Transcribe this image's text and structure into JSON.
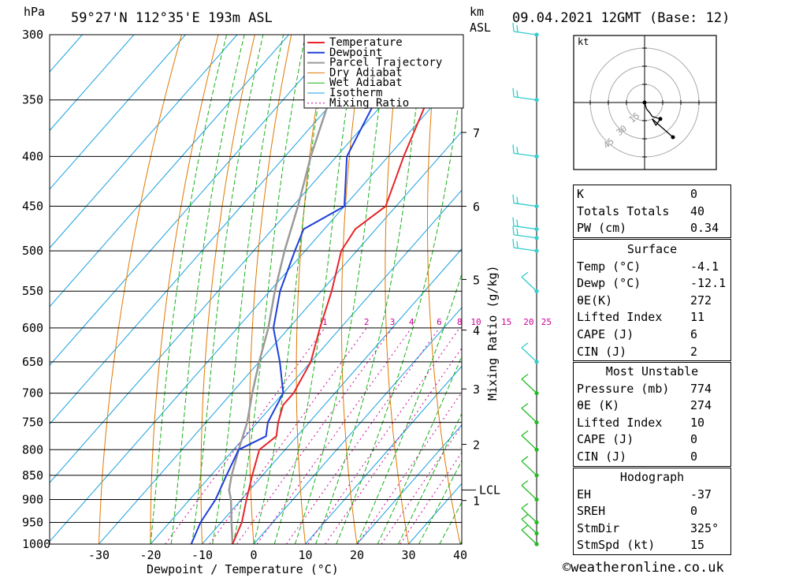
{
  "header": {
    "location": "59°27'N  112°35'E  193m  ASL",
    "datetime": "09.04.2021  12GMT  (Base: 12)",
    "hpa_label": "hPa",
    "km_label": "km",
    "asl_label": "ASL",
    "mixing_ratio_axis": "Mixing Ratio (g/kg)",
    "lcl_label": "LCL"
  },
  "legend": [
    "Temperature",
    "Dewpoint",
    "Parcel Trajectory",
    "Dry Adiabat",
    "Wet Adiabat",
    "Isotherm",
    "Mixing Ratio"
  ],
  "colors": {
    "temperature": "#e8242a",
    "dewpoint": "#1f3fd8",
    "parcel": "#9a9a9a",
    "dry_adiabat": "#e07800",
    "wet_adiabat": "#18b018",
    "isotherm": "#19a0e0",
    "mixing_ratio": "#cc0099",
    "wind": "#33cccc",
    "wind_low": "#22bb22"
  },
  "chart_data": {
    "type": "skew-t",
    "xlabel": "Dewpoint / Temperature (°C)",
    "ylabel": "hPa",
    "xlim": [
      -40,
      40
    ],
    "ylim": [
      1000,
      300
    ],
    "x_ticks": [
      "-30",
      "-20",
      "-10",
      "0",
      "10",
      "20",
      "30",
      "40"
    ],
    "pressure_levels": [
      300,
      350,
      400,
      450,
      500,
      550,
      600,
      650,
      700,
      750,
      800,
      850,
      900,
      950,
      1000
    ],
    "height_km_ticks": [
      {
        "label": "7",
        "p": 378
      },
      {
        "label": "6",
        "p": 450
      },
      {
        "label": "5",
        "p": 535
      },
      {
        "label": "4",
        "p": 603
      },
      {
        "label": "3",
        "p": 693
      },
      {
        "label": "2",
        "p": 790
      },
      {
        "label": "1",
        "p": 902
      }
    ],
    "mixing_ratio_labels": [
      "1",
      "2",
      "3",
      "4",
      "6",
      "8",
      "10",
      "15",
      "20",
      "25"
    ],
    "temperature": [
      {
        "p": 1000,
        "t": -4.1
      },
      {
        "p": 950,
        "t": -6
      },
      {
        "p": 900,
        "t": -9
      },
      {
        "p": 850,
        "t": -12
      },
      {
        "p": 800,
        "t": -15
      },
      {
        "p": 775,
        "t": -14
      },
      {
        "p": 750,
        "t": -16
      },
      {
        "p": 720,
        "t": -18
      },
      {
        "p": 700,
        "t": -18
      },
      {
        "p": 650,
        "t": -20
      },
      {
        "p": 600,
        "t": -24
      },
      {
        "p": 550,
        "t": -28
      },
      {
        "p": 500,
        "t": -33
      },
      {
        "p": 475,
        "t": -34
      },
      {
        "p": 450,
        "t": -32
      },
      {
        "p": 400,
        "t": -37
      },
      {
        "p": 350,
        "t": -42
      },
      {
        "p": 300,
        "t": -47
      }
    ],
    "dewpoint": [
      {
        "p": 1000,
        "t": -12.1
      },
      {
        "p": 950,
        "t": -14
      },
      {
        "p": 900,
        "t": -15
      },
      {
        "p": 850,
        "t": -17
      },
      {
        "p": 800,
        "t": -19
      },
      {
        "p": 775,
        "t": -16
      },
      {
        "p": 750,
        "t": -18
      },
      {
        "p": 700,
        "t": -20
      },
      {
        "p": 650,
        "t": -26
      },
      {
        "p": 600,
        "t": -33
      },
      {
        "p": 550,
        "t": -38
      },
      {
        "p": 500,
        "t": -42
      },
      {
        "p": 475,
        "t": -44
      },
      {
        "p": 450,
        "t": -40
      },
      {
        "p": 400,
        "t": -48
      },
      {
        "p": 350,
        "t": -52
      },
      {
        "p": 300,
        "t": -56
      }
    ],
    "parcel": [
      {
        "p": 1000,
        "t": -4.1
      },
      {
        "p": 950,
        "t": -8
      },
      {
        "p": 900,
        "t": -12
      },
      {
        "p": 880,
        "t": -14
      },
      {
        "p": 850,
        "t": -16
      },
      {
        "p": 800,
        "t": -19
      },
      {
        "p": 750,
        "t": -22
      },
      {
        "p": 700,
        "t": -26
      },
      {
        "p": 650,
        "t": -30
      },
      {
        "p": 600,
        "t": -34
      },
      {
        "p": 550,
        "t": -39
      },
      {
        "p": 500,
        "t": -44
      },
      {
        "p": 450,
        "t": -49
      },
      {
        "p": 400,
        "t": -55
      },
      {
        "p": 350,
        "t": -61
      },
      {
        "p": 300,
        "t": -68
      }
    ],
    "lcl_p": 880,
    "wind_pressures": [
      300,
      350,
      400,
      450,
      475,
      485,
      500,
      550,
      650,
      700,
      750,
      800,
      850,
      900,
      950,
      975,
      1000
    ]
  },
  "hodograph": {
    "unit": "kt",
    "ring_labels": [
      "15",
      "30",
      "45"
    ],
    "trace": [
      [
        0,
        0
      ],
      [
        0.3,
        -1
      ],
      [
        0.8,
        -1.6
      ],
      [
        1.2,
        -2.2
      ],
      [
        2.5,
        -2.6
      ],
      [
        1.8,
        -3.6
      ],
      [
        1.2,
        -2.6
      ],
      [
        4.5,
        -5.5
      ]
    ]
  },
  "indices": {
    "general": [
      {
        "label": "K",
        "value": "0"
      },
      {
        "label": "Totals Totals",
        "value": "40"
      },
      {
        "label": "PW (cm)",
        "value": "0.34"
      }
    ],
    "surface": {
      "title": "Surface",
      "rows": [
        {
          "label": "Temp (°C)",
          "value": "-4.1"
        },
        {
          "label": "Dewp (°C)",
          "value": "-12.1"
        },
        {
          "label": "θE(K)",
          "value": "272"
        },
        {
          "label": "Lifted Index",
          "value": "11"
        },
        {
          "label": "CAPE (J)",
          "value": "6"
        },
        {
          "label": "CIN (J)",
          "value": "2"
        }
      ]
    },
    "most_unstable": {
      "title": "Most Unstable",
      "rows": [
        {
          "label": "Pressure (mb)",
          "value": "774"
        },
        {
          "label": "θE (K)",
          "value": "274"
        },
        {
          "label": "Lifted Index",
          "value": "10"
        },
        {
          "label": "CAPE (J)",
          "value": "0"
        },
        {
          "label": "CIN (J)",
          "value": "0"
        }
      ]
    },
    "hodograph": {
      "title": "Hodograph",
      "rows": [
        {
          "label": "EH",
          "value": "-37"
        },
        {
          "label": "SREH",
          "value": "0"
        },
        {
          "label": "StmDir",
          "value": "325°"
        },
        {
          "label": "StmSpd (kt)",
          "value": "15"
        }
      ]
    }
  },
  "credit": "©weatheronline.co.uk"
}
